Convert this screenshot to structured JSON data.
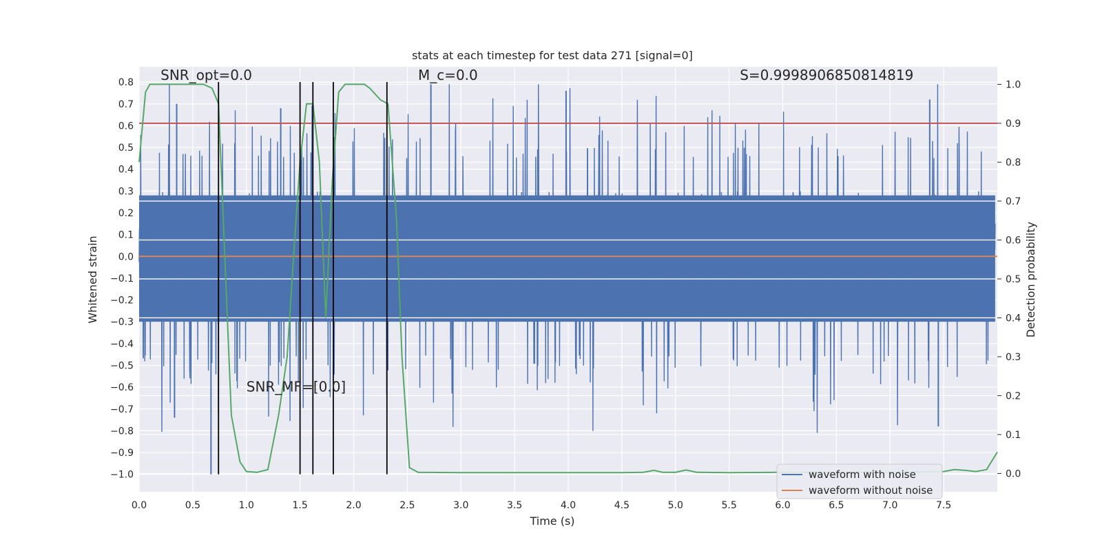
{
  "chart_data": {
    "type": "line",
    "title": "stats at each timestep for test data 271 [signal=0]",
    "xlabel": "Time (s)",
    "ylabel": "Whitened strain",
    "y2label": "Detection probability",
    "xlim": [
      0.0,
      8.0
    ],
    "ylim": [
      -1.08,
      0.87
    ],
    "y2lim": [
      -0.047,
      1.045
    ],
    "x_ticks": [
      "0.0",
      "0.5",
      "1.0",
      "1.5",
      "2.0",
      "2.5",
      "3.0",
      "3.5",
      "4.0",
      "4.5",
      "5.0",
      "5.5",
      "6.0",
      "6.5",
      "7.0",
      "7.5"
    ],
    "y_ticks": [
      "0.8",
      "0.7",
      "0.6",
      "0.5",
      "0.4",
      "0.3",
      "0.2",
      "0.1",
      "0.0",
      "-0.1",
      "-0.2",
      "-0.3",
      "-0.4",
      "-0.5",
      "-0.6",
      "-0.7",
      "-0.8",
      "-0.9",
      "-1.0"
    ],
    "y2_ticks": [
      "1.0",
      "0.9",
      "0.8",
      "0.7",
      "0.6",
      "0.5",
      "0.4",
      "0.3",
      "0.2",
      "0.1",
      "0.0"
    ],
    "grid": true,
    "legend_position": "lower-right",
    "series": [
      {
        "name": "waveform with noise",
        "color": "#4c72b0",
        "axis": "left",
        "description_value_range": [
          -1.0,
          0.79
        ],
        "notable_peaks": [
          {
            "x": 0.35,
            "y": 0.7
          },
          {
            "x": 1.32,
            "y": 0.68
          },
          {
            "x": 2.72,
            "y": 0.79
          },
          {
            "x": 3.98,
            "y": 0.76
          },
          {
            "x": 7.37,
            "y": 0.72
          },
          {
            "x": 0.67,
            "y": -1.0
          },
          {
            "x": 0.33,
            "y": -0.74
          },
          {
            "x": 7.45,
            "y": -0.78
          }
        ]
      },
      {
        "name": "waveform without noise",
        "color": "#dd8452",
        "axis": "left",
        "x": [
          0.0,
          8.0
        ],
        "y": [
          0.0,
          0.0
        ]
      },
      {
        "color": "#55a868",
        "axis": "right",
        "x": [
          0.0,
          0.06,
          0.1,
          0.2,
          0.4,
          0.6,
          0.68,
          0.74,
          0.8,
          0.86,
          0.94,
          1.0,
          1.1,
          1.2,
          1.25,
          1.3,
          1.38,
          1.45,
          1.5,
          1.56,
          1.62,
          1.68,
          1.74,
          1.8,
          1.86,
          1.92,
          2.0,
          2.1,
          2.15,
          2.25,
          2.32,
          2.4,
          2.45,
          2.52,
          2.6,
          3.0,
          3.5,
          4.0,
          4.5,
          4.7,
          4.8,
          4.88,
          5.0,
          5.1,
          5.2,
          5.5,
          6.0,
          6.5,
          7.0,
          7.5,
          7.6,
          7.7,
          7.8,
          7.9,
          8.0
        ],
        "y": [
          0.8,
          0.98,
          1.0,
          1.0,
          1.0,
          1.0,
          0.99,
          0.95,
          0.55,
          0.15,
          0.03,
          0.005,
          0.003,
          0.01,
          0.08,
          0.15,
          0.3,
          0.6,
          0.8,
          0.95,
          0.95,
          0.8,
          0.4,
          0.75,
          0.98,
          1.0,
          1.0,
          1.0,
          0.99,
          0.96,
          0.95,
          0.65,
          0.3,
          0.015,
          0.003,
          0.002,
          0.002,
          0.002,
          0.002,
          0.003,
          0.008,
          0.003,
          0.003,
          0.009,
          0.003,
          0.002,
          0.003,
          0.003,
          0.003,
          0.005,
          0.01,
          0.008,
          0.005,
          0.01,
          0.055
        ]
      },
      {
        "color": "#c44e52",
        "axis": "right",
        "x": [
          0.0,
          8.0
        ],
        "y": [
          0.9,
          0.9
        ]
      }
    ],
    "vertical_lines": [
      0.74,
      1.5,
      1.62,
      1.81,
      2.31
    ],
    "annotations": [
      {
        "text": "SNR_opt=0.0",
        "x": 0.2,
        "y": 0.81,
        "italic": false
      },
      {
        "text": "M_c=0.0",
        "x": 2.6,
        "y": 0.81,
        "italic": false
      },
      {
        "text": "S=0.9998906850814819",
        "x": 5.6,
        "y": 0.81,
        "italic": false
      },
      {
        "text": "SNR_MF=[0.0]",
        "x": 1.0,
        "y": -0.62,
        "italic": false
      }
    ]
  }
}
